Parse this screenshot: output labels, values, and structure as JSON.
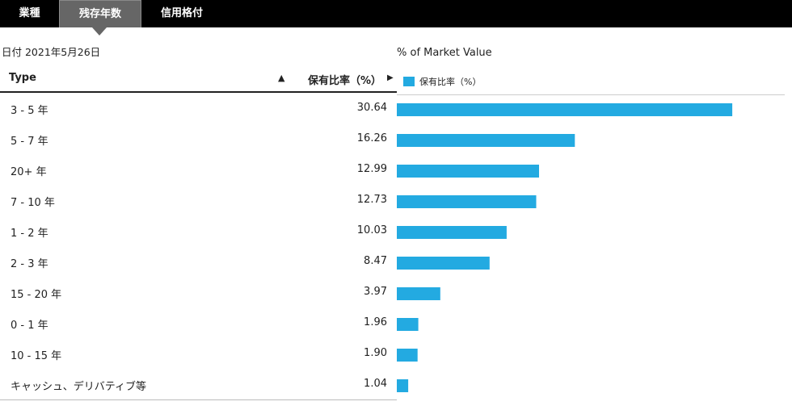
{
  "tabs": [
    {
      "label": "業種",
      "active": false
    },
    {
      "label": "残存年数",
      "active": true
    },
    {
      "label": "信用格付",
      "active": false
    }
  ],
  "date": "日付 2021年5月26日",
  "table": {
    "col_type": "Type",
    "col_value": "保有比率（%）",
    "sort_icon": "triangle-up",
    "expand_icon": "play-right"
  },
  "chart_data": {
    "type": "bar",
    "orientation": "horizontal",
    "title": "% of Market Value",
    "legend": "保有比率（%）",
    "legend_position": "top-left",
    "color": "#23aae1",
    "categories": [
      "3 - 5 年",
      "5 - 7 年",
      "20+ 年",
      "7 - 10 年",
      "1 - 2 年",
      "2 - 3 年",
      "15 - 20 年",
      "0 - 1 年",
      "10 - 15 年",
      "キャッシュ、デリバティブ等"
    ],
    "values": [
      30.64,
      16.26,
      12.99,
      12.73,
      10.03,
      8.47,
      3.97,
      1.96,
      1.9,
      1.04
    ],
    "value_labels": [
      "30.64",
      "16.26",
      "12.99",
      "12.73",
      "10.03",
      "8.47",
      "3.97",
      "1.96",
      "1.90",
      "1.04"
    ],
    "xlim": [
      0,
      31
    ],
    "grid": false
  }
}
